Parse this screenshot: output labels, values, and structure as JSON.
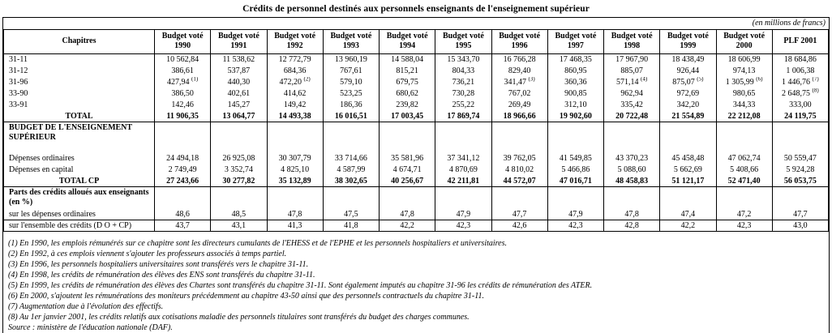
{
  "title": "Crédits de personnel destinés aux personnels enseignants de l'enseignement supérieur",
  "unit_note": "(en millions de francs)",
  "table": {
    "chapitres_label": "Chapitres",
    "budget_label": "Budget voté",
    "years": [
      "1990",
      "1991",
      "1992",
      "1993",
      "1994",
      "1995",
      "1996",
      "1997",
      "1998",
      "1999",
      "2000"
    ],
    "plf_label": "PLF 2001",
    "rows": [
      {
        "type": "data",
        "label": "31-11",
        "values": [
          "10 562,84",
          "11 538,62",
          "12 772,79",
          "13 960,19",
          "14 588,04",
          "15 343,70",
          "16 766,28",
          "17 468,35",
          "17 967,90",
          "18 438,49",
          "18 606,99",
          "18 684,86"
        ]
      },
      {
        "type": "data",
        "label": "31-12",
        "values": [
          "386,61",
          "537,87",
          "684,36",
          "767,61",
          "815,21",
          "804,33",
          "829,40",
          "860,95",
          "885,07",
          "926,44",
          "974,13",
          "1 006,38"
        ]
      },
      {
        "type": "data",
        "label": "31-96",
        "values": [
          {
            "v": "427,94",
            "sup": "(1)"
          },
          "440,30",
          {
            "v": "472,20",
            "sup": "(2)"
          },
          "579,10",
          "679,75",
          "736,21",
          {
            "v": "341,47",
            "sup": "(3)"
          },
          "360,36",
          {
            "v": "571,14",
            "sup": "(4)"
          },
          {
            "v": "875,07",
            "sup": "(5)"
          },
          {
            "v": "1 305,99",
            "sup": "(6)"
          },
          {
            "v": "1 446,76",
            "sup": "(7)"
          }
        ]
      },
      {
        "type": "data",
        "label": "33-90",
        "values": [
          "386,50",
          "402,61",
          "414,62",
          "523,25",
          "680,62",
          "730,28",
          "767,02",
          "900,85",
          "962,94",
          "972,69",
          "980,65",
          {
            "v": "2 648,75",
            "sup": "(8)"
          }
        ]
      },
      {
        "type": "data",
        "label": "33-91",
        "values": [
          "142,46",
          "145,27",
          "149,42",
          "186,36",
          "239,82",
          "255,22",
          "269,49",
          "312,10",
          "335,42",
          "342,20",
          "344,33",
          "333,00"
        ]
      },
      {
        "type": "data",
        "label": "TOTAL",
        "bold": true,
        "center": true,
        "bottom": true,
        "values": [
          "11 906,35",
          "13 064,77",
          "14 493,38",
          "16 016,51",
          "17 003,45",
          "17 869,74",
          "18 966,66",
          "19 902,60",
          "20 722,48",
          "21 554,89",
          "22 212,08",
          "24 119,75"
        ]
      },
      {
        "type": "section",
        "tall": true,
        "lines": [
          "BUDGET DE L'ENSEIGNEMENT",
          "SUPÉRIEUR"
        ]
      },
      {
        "type": "data",
        "label": "Dépenses ordinaires",
        "values": [
          "24 494,18",
          "26 925,08",
          "30 307,79",
          "33 714,66",
          "35 581,96",
          "37 341,12",
          "39 762,05",
          "41 549,85",
          "43 370,23",
          "45 458,48",
          "47 062,74",
          "50 559,47"
        ]
      },
      {
        "type": "data",
        "label": "Dépenses en capital",
        "values": [
          "2 749,49",
          "3 352,74",
          "4 825,10",
          "4 587,99",
          "4 674,71",
          "4 870,69",
          "4 810,02",
          "5 466,86",
          "5 088,60",
          "5 662,69",
          "5 408,66",
          "5 924,28"
        ]
      },
      {
        "type": "data",
        "label": "TOTAL CP",
        "bold": true,
        "center": true,
        "bottom": true,
        "values": [
          "27 243,66",
          "30 277,82",
          "35 132,89",
          "38 302,65",
          "40 256,67",
          "42 211,81",
          "44 572,07",
          "47 016,71",
          "48 458,83",
          "51 121,17",
          "52 471,40",
          "56 053,75"
        ]
      },
      {
        "type": "section",
        "midsec": true,
        "lines": [
          "Parts des crédits alloués aux enseignants",
          "(en %)"
        ]
      },
      {
        "type": "data",
        "label": "sur les dépenses ordinaires",
        "bottom": true,
        "values": [
          "48,6",
          "48,5",
          "47,8",
          "47,5",
          "47,8",
          "47,9",
          "47,7",
          "47,9",
          "47,8",
          "47,4",
          "47,2",
          "47,7"
        ]
      },
      {
        "type": "data",
        "label": "sur l'ensemble des crédits (D O + CP)",
        "bottom": true,
        "values": [
          "43,7",
          "43,1",
          "41,3",
          "41,8",
          "42,2",
          "42,3",
          "42,6",
          "42,3",
          "42,8",
          "42,2",
          "42,3",
          "43,0"
        ]
      }
    ]
  },
  "footnotes": [
    "(1) En 1990, les emplois rémunérés sur ce chapitre sont les directeurs cumulants de l'EHESS et de l'EPHE et les personnels hospitaliers et universitaires.",
    "(2) En 1992, à ces emplois viennent s'ajouter les professeurs associés à temps partiel.",
    "(3) En 1996, les personnels hospitaliers universitaires sont transférés vers le chapitre 31-11.",
    "(4) En 1998, les crédits de rémunération des élèves des ENS sont transférés du chapitre 31-11.",
    "(5) En 1999, les crédits de rémunération des élèves des Chartes sont transférés du chapitre 31-11. Sont également imputés au chapitre 31-96 les crédits de rémunération des ATER.",
    "(6) En 2000, s'ajoutent les rémunérations des moniteurs précédemment au chapitre 43-50 ainsi que des personnels contractuels du chapitre 31-11.",
    "(7) Augmentation due à l'évolution des effectifs.",
    "(8) Au 1er janvier 2001, les crédits relatifs aux cotisations maladie des personnels titulaires sont transférés du budget des charges communes."
  ],
  "source": "Source : ministère de l'éducation nationale (DAF)."
}
